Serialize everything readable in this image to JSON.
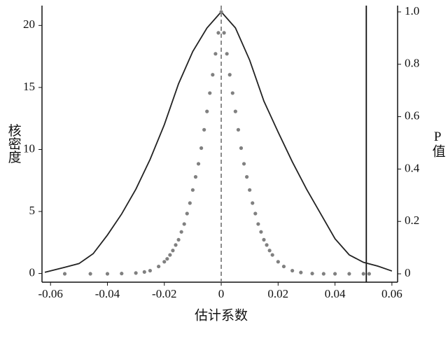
{
  "chart_data": {
    "type": "combo",
    "x_label": "估计系数",
    "y_label": "核密度",
    "y2_label": "P值",
    "xlim": [
      -0.063,
      0.062
    ],
    "xticks": [
      -0.06,
      -0.04,
      -0.02,
      0,
      0.02,
      0.04,
      0.06
    ],
    "ylim": [
      -0.7,
      21.6
    ],
    "yticks": [
      0,
      5,
      10,
      15,
      20
    ],
    "y2lim": [
      -0.032,
      1.024
    ],
    "y2ticks": [
      0,
      0.2,
      0.4,
      0.6,
      0.8,
      {
        "value": 1,
        "label": "1.0"
      }
    ],
    "vlines": [
      {
        "x": 0,
        "style": "dashed",
        "color": "#808080"
      },
      {
        "x": 0.051,
        "style": "solid",
        "color": "#111111"
      }
    ],
    "series": [
      {
        "type": "line",
        "color": "#222222",
        "x": [
          -0.062,
          -0.055,
          -0.05,
          -0.045,
          -0.04,
          -0.035,
          -0.03,
          -0.025,
          -0.02,
          -0.015,
          -0.01,
          -0.005,
          0,
          0.005,
          0.01,
          0.015,
          0.02,
          0.025,
          0.03,
          0.035,
          0.04,
          0.045,
          0.05,
          0.055,
          0.06
        ],
        "values": [
          0.1,
          0.5,
          0.8,
          1.6,
          3.1,
          4.8,
          6.8,
          9.2,
          12.0,
          15.3,
          17.9,
          19.8,
          21.1,
          19.8,
          17.2,
          13.9,
          11.4,
          9.0,
          6.8,
          4.8,
          2.8,
          1.5,
          0.9,
          0.6,
          0.2
        ]
      },
      {
        "type": "scatter",
        "axis": "y2",
        "color": "#808080",
        "x": [
          -0.046,
          -0.04,
          -0.035,
          -0.03,
          -0.027,
          -0.025,
          -0.022,
          -0.02,
          -0.019,
          -0.018,
          -0.017,
          -0.016,
          -0.015,
          -0.014,
          -0.013,
          -0.012,
          -0.011,
          -0.01,
          -0.009,
          -0.008,
          -0.007,
          -0.006,
          -0.005,
          -0.004,
          -0.003,
          -0.002,
          -0.001,
          0,
          0.001,
          0.002,
          0.003,
          0.004,
          0.005,
          0.006,
          0.007,
          0.008,
          0.009,
          0.01,
          0.011,
          0.012,
          0.013,
          0.014,
          0.015,
          0.016,
          0.017,
          0.018,
          0.02,
          0.022,
          0.025,
          0.028,
          0.032,
          0.036,
          0.04,
          0.045,
          0.05,
          -0.055,
          0.052
        ],
        "values": [
          0,
          0,
          0.001,
          0.003,
          0.007,
          0.012,
          0.028,
          0.046,
          0.057,
          0.072,
          0.089,
          0.11,
          0.13,
          0.16,
          0.19,
          0.23,
          0.27,
          0.32,
          0.37,
          0.42,
          0.48,
          0.55,
          0.62,
          0.69,
          0.76,
          0.84,
          0.92,
          1.0,
          0.92,
          0.84,
          0.76,
          0.69,
          0.62,
          0.55,
          0.48,
          0.42,
          0.37,
          0.32,
          0.27,
          0.23,
          0.19,
          0.16,
          0.13,
          0.11,
          0.089,
          0.072,
          0.046,
          0.028,
          0.012,
          0.005,
          0.001,
          0,
          0,
          0,
          0,
          0,
          0
        ]
      }
    ]
  }
}
